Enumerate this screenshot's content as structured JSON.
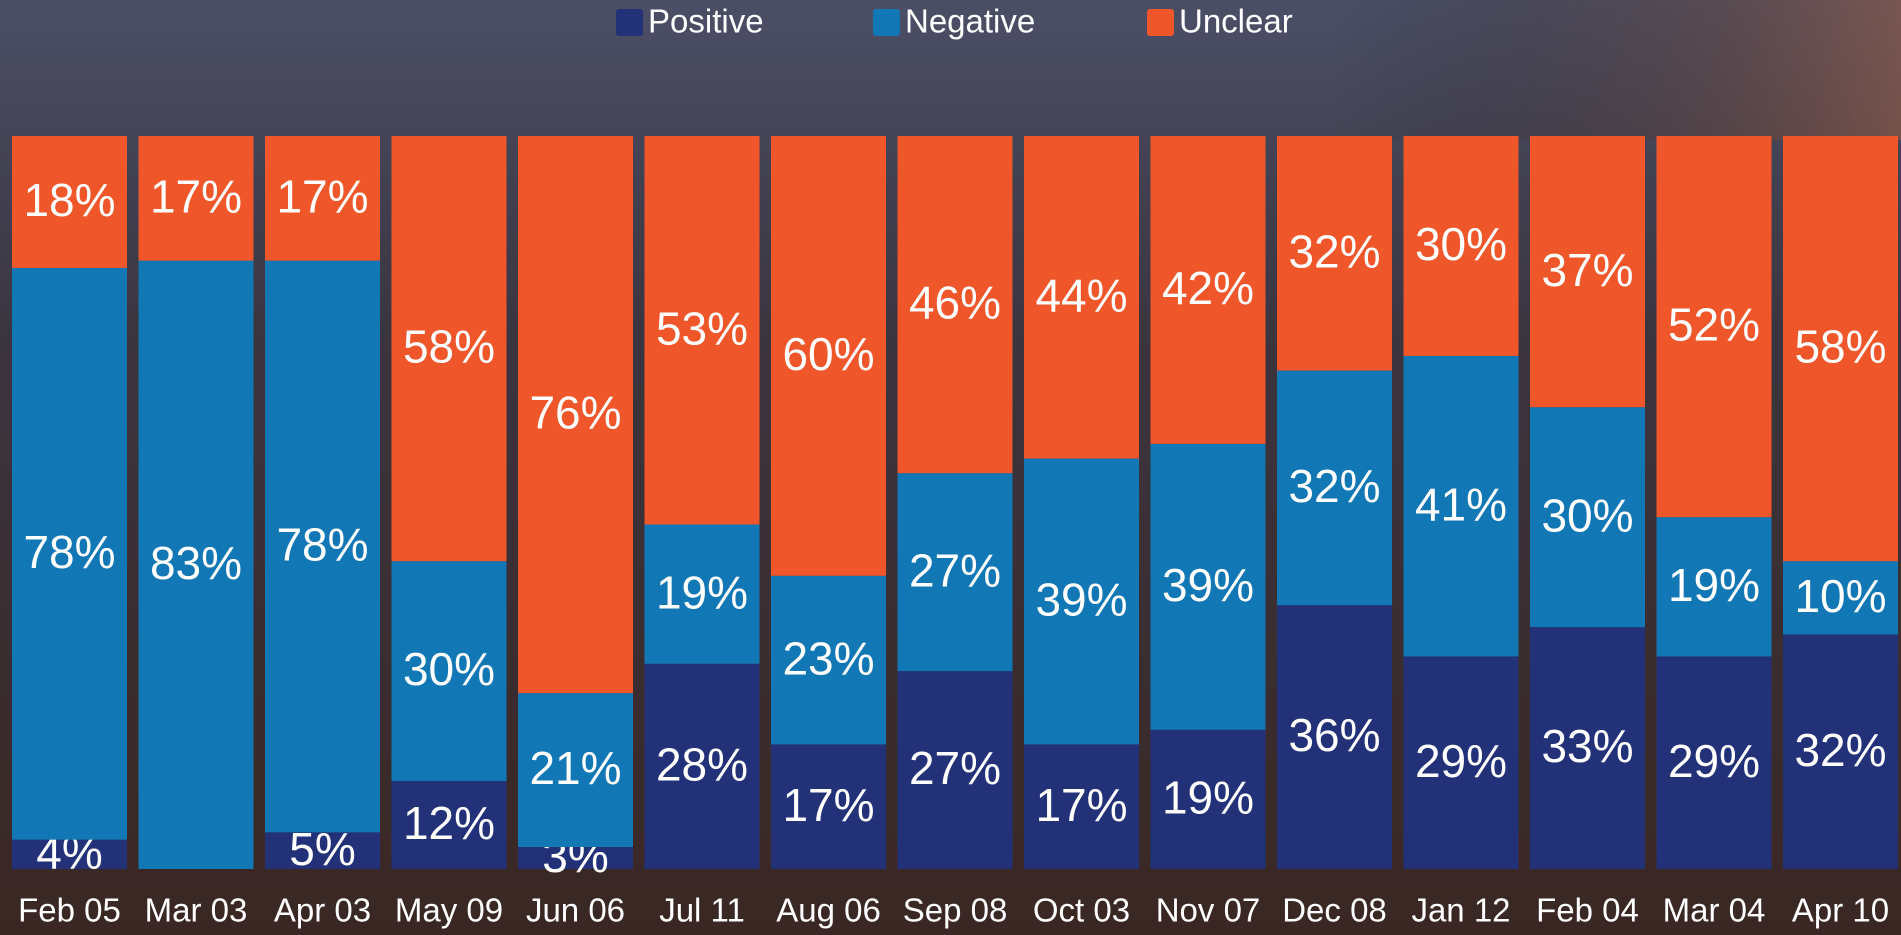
{
  "chart_data": {
    "type": "stacked_bar",
    "categories": [
      "Feb 05",
      "Mar 03",
      "Apr 03",
      "May 09",
      "Jun 06",
      "Jul 11",
      "Aug 06",
      "Sep 08",
      "Oct 03",
      "Nov 07",
      "Dec 08",
      "Jan 12",
      "Feb 04",
      "Mar 04",
      "Apr 10"
    ],
    "series": [
      {
        "name": "Positive",
        "color": "#233278",
        "values": [
          4,
          null,
          5,
          12,
          3,
          28,
          17,
          27,
          17,
          19,
          36,
          29,
          33,
          29,
          32
        ],
        "value_labels": [
          "4%",
          null,
          "5%",
          "12%",
          "3%",
          "28%",
          "17%",
          "27%",
          "17%",
          "19%",
          "36%",
          "29%",
          "33%",
          "29%",
          "32%"
        ]
      },
      {
        "name": "Negative",
        "color": "#1277b5",
        "values": [
          78,
          83,
          78,
          30,
          21,
          19,
          23,
          27,
          39,
          39,
          32,
          41,
          30,
          19,
          10
        ],
        "value_labels": [
          "78%",
          "83%",
          "78%",
          "30%",
          "21%",
          "19%",
          "23%",
          "27%",
          "39%",
          "39%",
          "32%",
          "41%",
          "30%",
          "19%",
          "10%"
        ]
      },
      {
        "name": "Unclear",
        "color": "#ef562a",
        "values": [
          18,
          17,
          17,
          58,
          76,
          53,
          60,
          46,
          44,
          42,
          32,
          30,
          37,
          52,
          58
        ],
        "value_labels": [
          "18%",
          "17%",
          "17%",
          "58%",
          "76%",
          "53%",
          "60%",
          "46%",
          "44%",
          "42%",
          "32%",
          "30%",
          "37%",
          "52%",
          "58%"
        ]
      }
    ],
    "ylim": [
      0,
      100
    ]
  }
}
